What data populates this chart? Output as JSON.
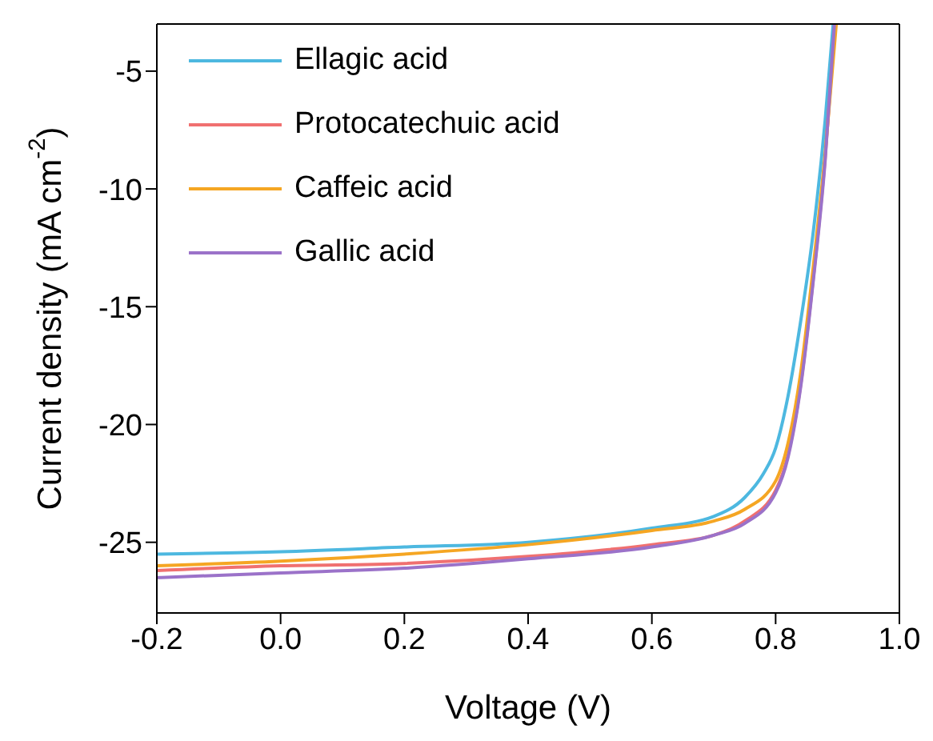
{
  "chart_data": {
    "type": "line",
    "xlabel": "Voltage (V)",
    "ylabel": "Current density (mA cm$^{-2}$)",
    "xlim": [
      -0.2,
      1.0
    ],
    "xticks": [
      {
        "value": -0.2,
        "label": "-0.2"
      },
      {
        "value": 0,
        "label": "0.0"
      },
      {
        "value": 0.2,
        "label": "0.2"
      },
      {
        "value": 0.4,
        "label": "0.4"
      },
      {
        "value": 0.6,
        "label": "0.6"
      },
      {
        "value": 0.8,
        "label": "0.8"
      },
      {
        "value": 1,
        "label": "1.0"
      }
    ],
    "ylim": [
      -28,
      -3
    ],
    "yticks": [
      -5,
      -10,
      -15,
      -20,
      -25
    ],
    "grid": false,
    "legend": "top left",
    "marker": "none",
    "line_style": "solid",
    "series": [
      {
        "name": "Ellagic acid",
        "color": "#4db8e0",
        "x": [
          -0.2,
          0,
          0.2,
          0.4,
          0.6,
          0.7,
          0.75,
          0.78,
          0.8,
          0.82,
          0.84,
          0.86,
          0.88,
          0.893
        ],
        "values": [
          -25.5,
          -25.4,
          -25.2,
          -25.0,
          -24.4,
          -23.9,
          -23.1,
          -22.1,
          -21.0,
          -18.8,
          -15.7,
          -12.0,
          -7.1,
          -3
        ]
      },
      {
        "name": "Protocatechuic acid",
        "color": "#f07070",
        "x": [
          -0.2,
          0,
          0.2,
          0.4,
          0.6,
          0.7,
          0.75,
          0.8,
          0.82,
          0.84,
          0.86,
          0.88,
          0.896
        ],
        "values": [
          -26.2,
          -26.0,
          -25.9,
          -25.6,
          -25.1,
          -24.7,
          -24.1,
          -22.8,
          -21.3,
          -18.4,
          -14.0,
          -8.7,
          -3
        ]
      },
      {
        "name": "Caffeic acid",
        "color": "#f5a623",
        "x": [
          -0.2,
          0,
          0.2,
          0.4,
          0.6,
          0.7,
          0.75,
          0.8,
          0.82,
          0.84,
          0.86,
          0.88,
          0.898
        ],
        "values": [
          -26.0,
          -25.8,
          -25.5,
          -25.1,
          -24.5,
          -24.1,
          -23.6,
          -22.4,
          -20.8,
          -17.9,
          -13.5,
          -8.5,
          -3
        ]
      },
      {
        "name": "Gallic acid",
        "color": "#9b72c9",
        "x": [
          -0.2,
          0,
          0.2,
          0.4,
          0.6,
          0.7,
          0.75,
          0.8,
          0.82,
          0.84,
          0.86,
          0.88,
          0.895
        ],
        "values": [
          -26.5,
          -26.3,
          -26.1,
          -25.7,
          -25.2,
          -24.7,
          -24.2,
          -22.9,
          -21.4,
          -18.5,
          -14.1,
          -8.8,
          -3
        ]
      }
    ]
  }
}
